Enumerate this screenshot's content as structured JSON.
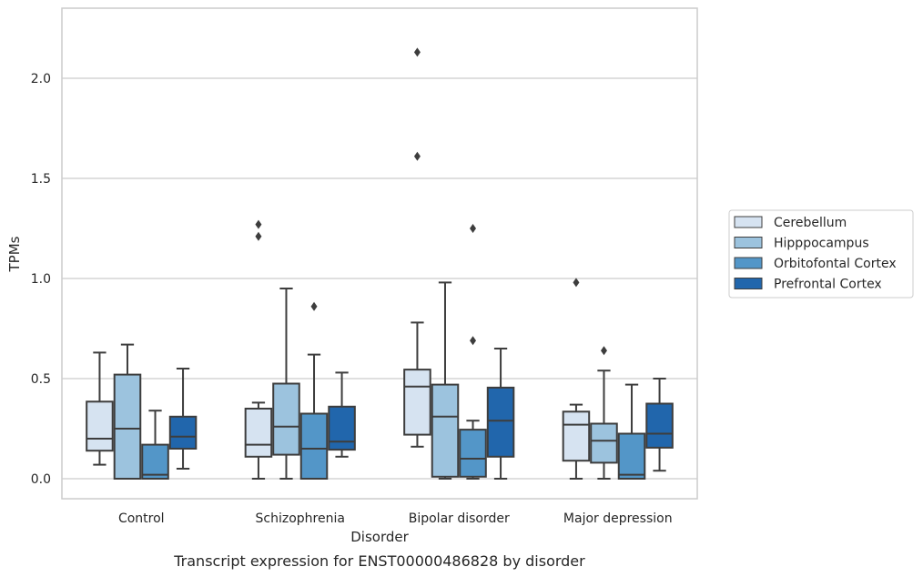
{
  "chart_data": {
    "type": "boxplot",
    "title": "",
    "caption": "Transcript expression for ENST00000486828 by disorder",
    "xlabel": "Disorder",
    "ylabel": "TPMs",
    "ylim": [
      -0.1,
      2.35
    ],
    "yticks": [
      0.0,
      0.5,
      1.0,
      1.5,
      2.0
    ],
    "ytick_labels": [
      "0.0",
      "0.5",
      "1.0",
      "1.5",
      "2.0"
    ],
    "grid": "horizontal",
    "legend_position": "right",
    "categories": [
      "Control",
      "Schizophrenia",
      "Bipolar disorder",
      "Major depression"
    ],
    "series": [
      {
        "name": "Cerebellum",
        "color": "#d6e3f1",
        "boxes": [
          {
            "q1": 0.14,
            "median": 0.2,
            "q3": 0.385,
            "whisker_low": 0.07,
            "whisker_high": 0.63,
            "outliers": []
          },
          {
            "q1": 0.11,
            "median": 0.17,
            "q3": 0.35,
            "whisker_low": 0.0,
            "whisker_high": 0.38,
            "outliers": [
              1.21,
              1.27
            ]
          },
          {
            "q1": 0.22,
            "median": 0.46,
            "q3": 0.545,
            "whisker_low": 0.16,
            "whisker_high": 0.78,
            "outliers": [
              1.61,
              2.13
            ]
          },
          {
            "q1": 0.09,
            "median": 0.27,
            "q3": 0.335,
            "whisker_low": 0.0,
            "whisker_high": 0.37,
            "outliers": [
              0.98
            ]
          }
        ]
      },
      {
        "name": "Hipppocampus",
        "color": "#9cc3de",
        "boxes": [
          {
            "q1": 0.0,
            "median": 0.25,
            "q3": 0.52,
            "whisker_low": 0.0,
            "whisker_high": 0.67,
            "outliers": []
          },
          {
            "q1": 0.12,
            "median": 0.26,
            "q3": 0.475,
            "whisker_low": 0.0,
            "whisker_high": 0.95,
            "outliers": []
          },
          {
            "q1": 0.01,
            "median": 0.31,
            "q3": 0.47,
            "whisker_low": 0.0,
            "whisker_high": 0.98,
            "outliers": []
          },
          {
            "q1": 0.08,
            "median": 0.19,
            "q3": 0.275,
            "whisker_low": 0.0,
            "whisker_high": 0.54,
            "outliers": [
              0.64
            ]
          }
        ]
      },
      {
        "name": "Orbitofontal Cortex",
        "color": "#5396c8",
        "boxes": [
          {
            "q1": 0.0,
            "median": 0.02,
            "q3": 0.17,
            "whisker_low": 0.0,
            "whisker_high": 0.34,
            "outliers": []
          },
          {
            "q1": 0.0,
            "median": 0.15,
            "q3": 0.325,
            "whisker_low": 0.0,
            "whisker_high": 0.62,
            "outliers": [
              0.86
            ]
          },
          {
            "q1": 0.01,
            "median": 0.1,
            "q3": 0.245,
            "whisker_low": 0.0,
            "whisker_high": 0.29,
            "outliers": [
              0.69,
              1.25
            ]
          },
          {
            "q1": 0.0,
            "median": 0.02,
            "q3": 0.225,
            "whisker_low": 0.0,
            "whisker_high": 0.47,
            "outliers": []
          }
        ]
      },
      {
        "name": "Prefrontal Cortex",
        "color": "#2166ac",
        "boxes": [
          {
            "q1": 0.15,
            "median": 0.21,
            "q3": 0.31,
            "whisker_low": 0.05,
            "whisker_high": 0.55,
            "outliers": []
          },
          {
            "q1": 0.145,
            "median": 0.185,
            "q3": 0.36,
            "whisker_low": 0.11,
            "whisker_high": 0.53,
            "outliers": []
          },
          {
            "q1": 0.11,
            "median": 0.29,
            "q3": 0.455,
            "whisker_low": 0.0,
            "whisker_high": 0.65,
            "outliers": []
          },
          {
            "q1": 0.155,
            "median": 0.225,
            "q3": 0.375,
            "whisker_low": 0.04,
            "whisker_high": 0.5,
            "outliers": []
          }
        ]
      }
    ]
  }
}
